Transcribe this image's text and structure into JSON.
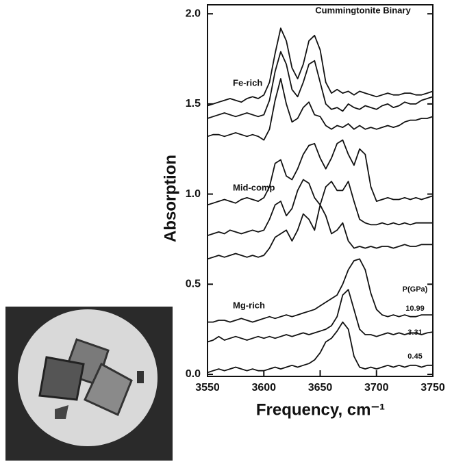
{
  "chart_data": {
    "type": "line",
    "title": "Cummingtonite Binary",
    "xlabel": "Frequency, cm⁻¹",
    "ylabel": "Absorption",
    "x": [
      3550,
      3555,
      3560,
      3565,
      3570,
      3575,
      3580,
      3585,
      3590,
      3595,
      3600,
      3605,
      3610,
      3615,
      3620,
      3625,
      3630,
      3635,
      3640,
      3645,
      3650,
      3655,
      3660,
      3665,
      3670,
      3675,
      3680,
      3685,
      3690,
      3695,
      3700,
      3705,
      3710,
      3715,
      3720,
      3725,
      3730,
      3735,
      3740,
      3745,
      3750
    ],
    "xlim": [
      3550,
      3750
    ],
    "xticks": [
      3550,
      3600,
      3650,
      3700,
      3750
    ],
    "ylim": [
      0,
      2.05
    ],
    "yticks": [
      {
        "value": 0,
        "label": "0.0"
      },
      0.5,
      {
        "value": 1,
        "label": "1.0"
      },
      1.5,
      {
        "value": 2,
        "label": "2.0"
      }
    ],
    "annotations": [
      "Fe-rich",
      "Mid-comp",
      "Mg-rich",
      "P(GPa)",
      "10.99",
      "3.31",
      "0.45"
    ],
    "series": [
      {
        "color": "#111111",
        "values": [
          1.49,
          1.5,
          1.51,
          1.52,
          1.53,
          1.52,
          1.51,
          1.53,
          1.54,
          1.53,
          1.55,
          1.62,
          1.78,
          1.92,
          1.85,
          1.7,
          1.64,
          1.72,
          1.85,
          1.88,
          1.8,
          1.62,
          1.56,
          1.58,
          1.56,
          1.57,
          1.55,
          1.57,
          1.56,
          1.55,
          1.54,
          1.55,
          1.56,
          1.55,
          1.55,
          1.56,
          1.56,
          1.55,
          1.55,
          1.56,
          1.57
        ]
      },
      {
        "color": "#111111",
        "values": [
          1.42,
          1.43,
          1.44,
          1.45,
          1.44,
          1.43,
          1.44,
          1.45,
          1.44,
          1.43,
          1.44,
          1.52,
          1.68,
          1.79,
          1.72,
          1.58,
          1.54,
          1.62,
          1.72,
          1.74,
          1.62,
          1.5,
          1.47,
          1.48,
          1.46,
          1.5,
          1.48,
          1.47,
          1.49,
          1.48,
          1.47,
          1.49,
          1.5,
          1.48,
          1.49,
          1.51,
          1.5,
          1.5,
          1.52,
          1.53,
          1.54
        ]
      },
      {
        "color": "#111111",
        "values": [
          1.32,
          1.33,
          1.33,
          1.32,
          1.33,
          1.34,
          1.33,
          1.32,
          1.33,
          1.32,
          1.3,
          1.36,
          1.52,
          1.64,
          1.5,
          1.4,
          1.42,
          1.48,
          1.51,
          1.44,
          1.43,
          1.38,
          1.36,
          1.38,
          1.37,
          1.39,
          1.36,
          1.38,
          1.36,
          1.37,
          1.36,
          1.37,
          1.38,
          1.37,
          1.38,
          1.4,
          1.41,
          1.41,
          1.42,
          1.42,
          1.43
        ]
      },
      {
        "color": "#111111",
        "values": [
          0.94,
          0.95,
          0.96,
          0.97,
          0.96,
          0.95,
          0.97,
          0.98,
          0.97,
          0.96,
          0.98,
          1.04,
          1.17,
          1.19,
          1.1,
          1.08,
          1.14,
          1.22,
          1.27,
          1.28,
          1.2,
          1.14,
          1.2,
          1.28,
          1.3,
          1.22,
          1.16,
          1.25,
          1.22,
          1.04,
          0.96,
          0.97,
          0.98,
          0.97,
          0.97,
          0.98,
          0.97,
          0.98,
          0.97,
          0.98,
          0.99
        ]
      },
      {
        "color": "#111111",
        "values": [
          0.77,
          0.78,
          0.79,
          0.78,
          0.8,
          0.79,
          0.78,
          0.79,
          0.8,
          0.79,
          0.8,
          0.86,
          0.94,
          0.96,
          0.88,
          0.92,
          1.02,
          1.08,
          1.06,
          0.98,
          0.94,
          1.04,
          1.07,
          1.02,
          1.02,
          1.07,
          0.96,
          0.86,
          0.84,
          0.83,
          0.83,
          0.84,
          0.83,
          0.84,
          0.83,
          0.84,
          0.83,
          0.84,
          0.84,
          0.84,
          0.84
        ]
      },
      {
        "color": "#111111",
        "values": [
          0.64,
          0.65,
          0.66,
          0.65,
          0.66,
          0.67,
          0.66,
          0.65,
          0.66,
          0.65,
          0.66,
          0.7,
          0.76,
          0.78,
          0.8,
          0.74,
          0.8,
          0.89,
          0.86,
          0.8,
          0.94,
          0.88,
          0.78,
          0.8,
          0.84,
          0.74,
          0.7,
          0.71,
          0.7,
          0.71,
          0.7,
          0.71,
          0.71,
          0.7,
          0.71,
          0.72,
          0.71,
          0.71,
          0.72,
          0.72,
          0.72
        ]
      },
      {
        "color": "#111111",
        "values": [
          0.29,
          0.29,
          0.3,
          0.3,
          0.29,
          0.3,
          0.31,
          0.3,
          0.29,
          0.3,
          0.31,
          0.32,
          0.31,
          0.32,
          0.33,
          0.32,
          0.33,
          0.34,
          0.35,
          0.36,
          0.38,
          0.4,
          0.42,
          0.44,
          0.5,
          0.58,
          0.63,
          0.64,
          0.58,
          0.45,
          0.36,
          0.33,
          0.32,
          0.33,
          0.32,
          0.33,
          0.32,
          0.32,
          0.33,
          0.33,
          0.33
        ]
      },
      {
        "color": "#111111",
        "values": [
          0.18,
          0.19,
          0.21,
          0.19,
          0.2,
          0.21,
          0.2,
          0.19,
          0.2,
          0.21,
          0.2,
          0.21,
          0.2,
          0.21,
          0.22,
          0.21,
          0.22,
          0.23,
          0.22,
          0.23,
          0.24,
          0.25,
          0.27,
          0.32,
          0.44,
          0.47,
          0.36,
          0.25,
          0.22,
          0.22,
          0.21,
          0.22,
          0.23,
          0.22,
          0.23,
          0.22,
          0.23,
          0.23,
          0.22,
          0.23,
          0.235
        ]
      },
      {
        "color": "#111111",
        "values": [
          0.01,
          0.02,
          0.03,
          0.02,
          0.03,
          0.04,
          0.03,
          0.02,
          0.03,
          0.02,
          0.02,
          0.03,
          0.04,
          0.03,
          0.04,
          0.05,
          0.04,
          0.05,
          0.06,
          0.08,
          0.12,
          0.18,
          0.2,
          0.24,
          0.29,
          0.25,
          0.1,
          0.04,
          0.03,
          0.04,
          0.03,
          0.04,
          0.05,
          0.04,
          0.05,
          0.04,
          0.05,
          0.05,
          0.04,
          0.05,
          0.05
        ]
      }
    ]
  }
}
